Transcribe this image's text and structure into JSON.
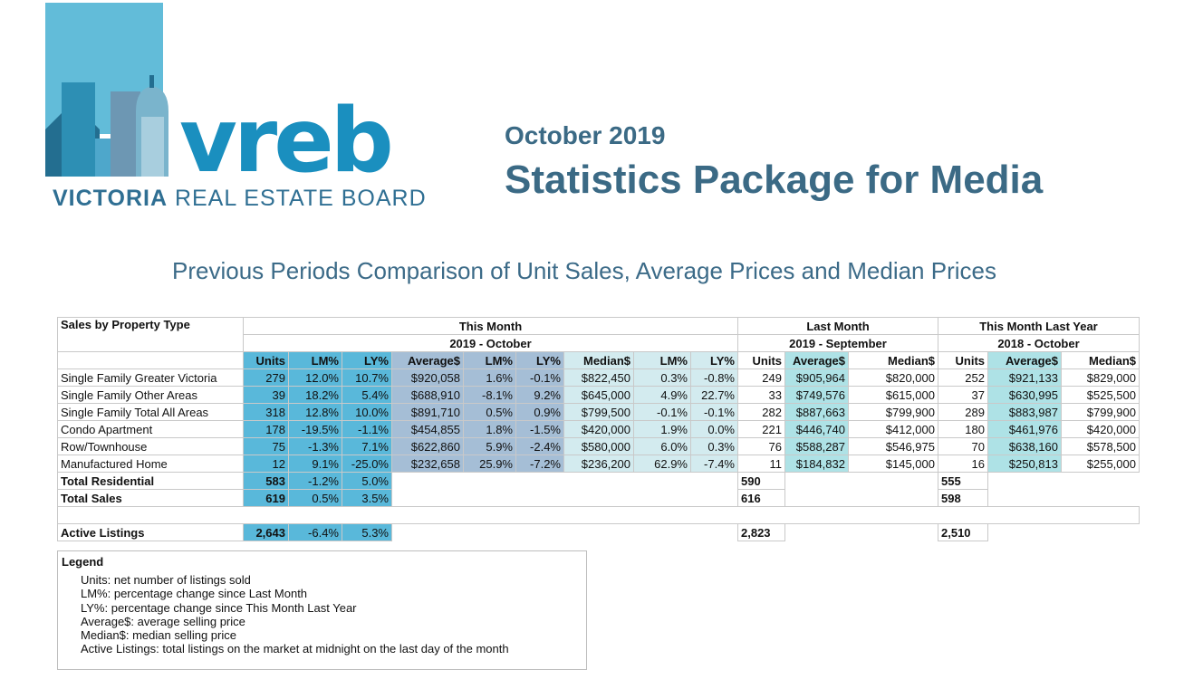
{
  "header": {
    "logo_word": "vreb",
    "logo_line_bold": "VICTORIA",
    "logo_line_rest": "REAL ESTATE BOARD",
    "month": "October 2019",
    "title": "Statistics Package for Media"
  },
  "subtitle": "Previous Periods Comparison of Unit Sales, Average Prices and Median Prices",
  "colors": {
    "brand_dark": "#3b6a85",
    "brand_blue": "#1a8fbf",
    "this_month_units": "#59b8da",
    "this_month_avg": "#a5bed6",
    "this_month_median": "#d3ebef",
    "last_month_avg": "#aee2e6"
  },
  "table": {
    "corner_label": "Sales by Property Type",
    "groups": [
      {
        "label": "This Month",
        "period": "2019 - October"
      },
      {
        "label": "Last Month",
        "period": "2019 - September"
      },
      {
        "label": "This Month Last Year",
        "period": "2018 - October"
      }
    ],
    "columns": [
      "Units",
      "LM%",
      "LY%",
      "Average$",
      "LM%",
      "LY%",
      "Median$",
      "LM%",
      "LY%",
      "Units",
      "Average$",
      "Median$",
      "Units",
      "Average$",
      "Median$"
    ],
    "rows": [
      {
        "label": "Single Family Greater Victoria",
        "cells": [
          "279",
          "12.0%",
          "10.7%",
          "$920,058",
          "1.6%",
          "-0.1%",
          "$822,450",
          "0.3%",
          "-0.8%",
          "249",
          "$905,964",
          "$820,000",
          "252",
          "$921,133",
          "$829,000"
        ]
      },
      {
        "label": "Single Family Other Areas",
        "cells": [
          "39",
          "18.2%",
          "5.4%",
          "$688,910",
          "-8.1%",
          "9.2%",
          "$645,000",
          "4.9%",
          "22.7%",
          "33",
          "$749,576",
          "$615,000",
          "37",
          "$630,995",
          "$525,500"
        ]
      },
      {
        "label": "Single Family Total All Areas",
        "cells": [
          "318",
          "12.8%",
          "10.0%",
          "$891,710",
          "0.5%",
          "0.9%",
          "$799,500",
          "-0.1%",
          "-0.1%",
          "282",
          "$887,663",
          "$799,900",
          "289",
          "$883,987",
          "$799,900"
        ]
      },
      {
        "label": "Condo Apartment",
        "cells": [
          "178",
          "-19.5%",
          "-1.1%",
          "$454,855",
          "1.8%",
          "-1.5%",
          "$420,000",
          "1.9%",
          "0.0%",
          "221",
          "$446,740",
          "$412,000",
          "180",
          "$461,976",
          "$420,000"
        ]
      },
      {
        "label": "Row/Townhouse",
        "cells": [
          "75",
          "-1.3%",
          "7.1%",
          "$622,860",
          "5.9%",
          "-2.4%",
          "$580,000",
          "6.0%",
          "0.3%",
          "76",
          "$588,287",
          "$546,975",
          "70",
          "$638,160",
          "$578,500"
        ]
      },
      {
        "label": "Manufactured Home",
        "cells": [
          "12",
          "9.1%",
          "-25.0%",
          "$232,658",
          "25.9%",
          "-7.2%",
          "$236,200",
          "62.9%",
          "-7.4%",
          "11",
          "$184,832",
          "$145,000",
          "16",
          "$250,813",
          "$255,000"
        ]
      }
    ],
    "totals": [
      {
        "label": "Total Residential",
        "units": "583",
        "lm": "-1.2%",
        "ly": "5.0%",
        "last_month_units": "590",
        "last_year_units": "555"
      },
      {
        "label": "Total Sales",
        "units": "619",
        "lm": "0.5%",
        "ly": "3.5%",
        "last_month_units": "616",
        "last_year_units": "598"
      }
    ],
    "active": {
      "label": "Active Listings",
      "units": "2,643",
      "lm": "-6.4%",
      "ly": "5.3%",
      "last_month_units": "2,823",
      "last_year_units": "2,510"
    }
  },
  "legend": {
    "title": "Legend",
    "lines": [
      "Units: net number of listings sold",
      "LM%: percentage change since Last Month",
      "LY%: percentage change since This Month Last Year",
      "Average$: average selling price",
      "Median$: median selling price",
      "Active Listings: total listings on the market at midnight on the last day of the month"
    ]
  }
}
